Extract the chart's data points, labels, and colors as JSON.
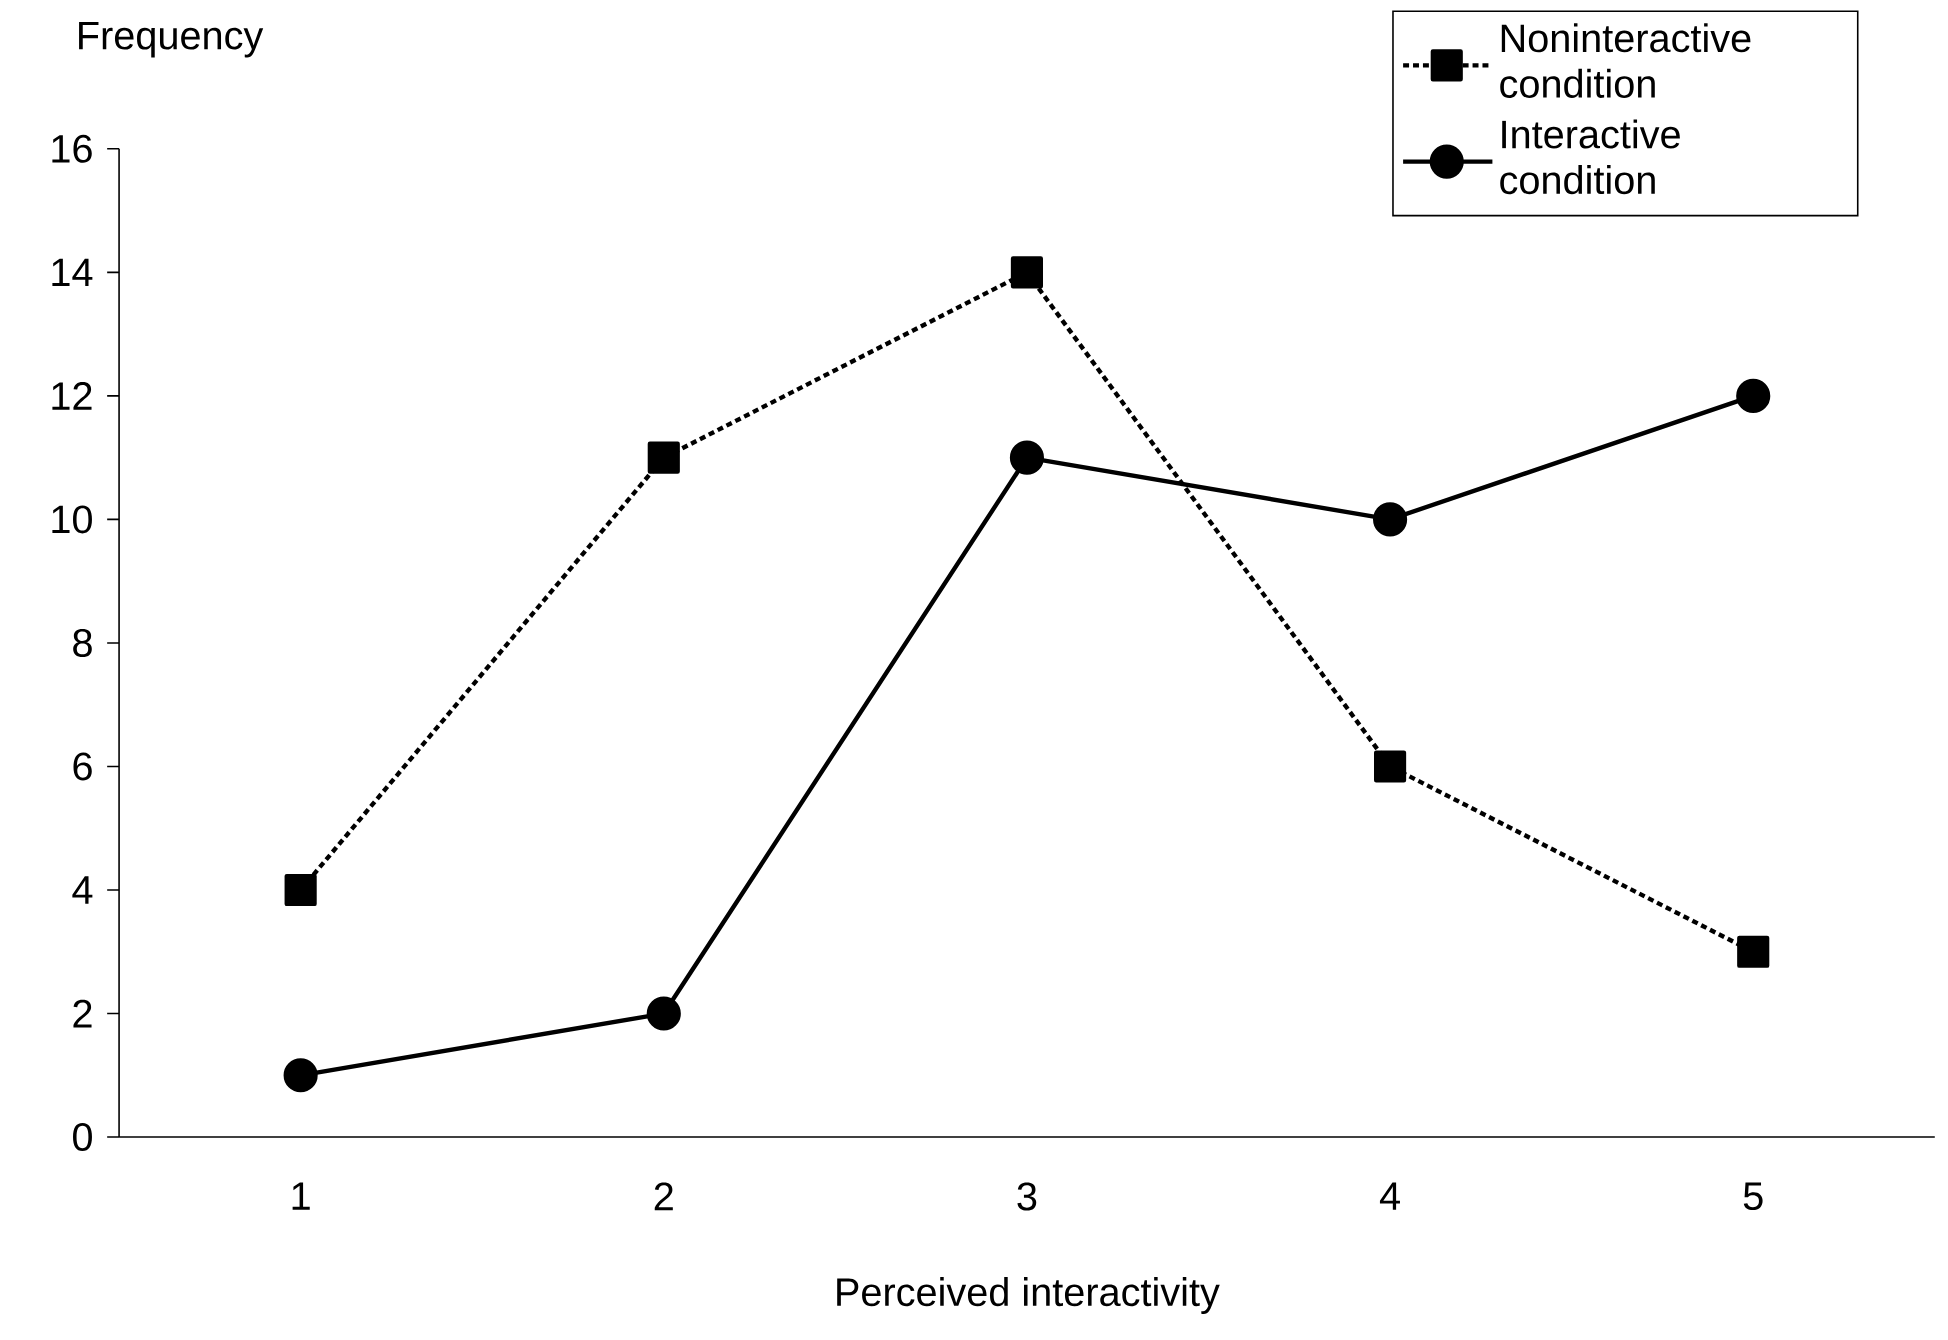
{
  "chart_data": {
    "type": "line",
    "xlabel": "Perceived interactivity",
    "ylabel": "Frequency",
    "categories": [
      "1",
      "2",
      "3",
      "4",
      "5"
    ],
    "ylim": [
      0,
      16
    ],
    "yticks": [
      0,
      2,
      4,
      6,
      8,
      10,
      12,
      14,
      16
    ],
    "legend": "top right",
    "series": [
      {
        "name": "Noninteractive condition",
        "color": "#000000",
        "marker": "square",
        "line_style": "dashed",
        "values": [
          4,
          11,
          14,
          6,
          3
        ]
      },
      {
        "name": "Interactive condition",
        "color": "#000000",
        "marker": "circle",
        "line_style": "solid",
        "values": [
          1,
          2,
          11,
          10,
          12
        ]
      }
    ]
  }
}
